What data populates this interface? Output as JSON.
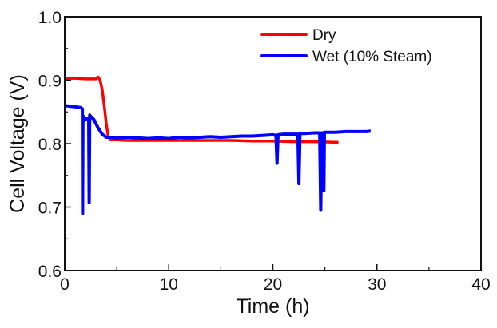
{
  "chart_data": {
    "type": "line",
    "title": "",
    "xlabel": "Time (h)",
    "ylabel": "Cell Voltage (V)",
    "xlim": [
      0,
      40
    ],
    "ylim": [
      0.6,
      1.0
    ],
    "x_ticks": [
      0,
      10,
      20,
      30,
      40
    ],
    "x_tick_labels": [
      "0",
      "10",
      "20",
      "30",
      "40"
    ],
    "y_ticks": [
      0.6,
      0.7,
      0.8,
      0.9,
      1.0
    ],
    "y_tick_labels": [
      "0.6",
      "0.7",
      "0.8",
      "0.9",
      "1.0"
    ],
    "x_minor_step": 5,
    "y_minor_step": 0.05,
    "grid": false,
    "legend_position": "top-right",
    "series": [
      {
        "name": "Dry",
        "color": "#ff0000",
        "x": [
          0,
          1,
          2,
          3,
          3.2,
          3.4,
          3.6,
          3.8,
          4.0,
          4.2,
          4.4,
          4.6,
          5,
          6,
          8,
          10,
          12,
          14,
          16,
          18,
          20,
          22,
          24,
          26.3
        ],
        "y": [
          0.903,
          0.903,
          0.902,
          0.902,
          0.905,
          0.9,
          0.885,
          0.86,
          0.83,
          0.81,
          0.806,
          0.806,
          0.806,
          0.805,
          0.805,
          0.805,
          0.805,
          0.805,
          0.805,
          0.804,
          0.804,
          0.803,
          0.803,
          0.802
        ]
      },
      {
        "name": "Wet (10% Steam)",
        "color": "#0000ff",
        "x": [
          0,
          0.5,
          1.0,
          1.5,
          1.7,
          1.72,
          1.75,
          1.78,
          1.8,
          2.0,
          2.3,
          2.35,
          2.4,
          2.45,
          2.5,
          2.8,
          3.2,
          3.6,
          4.0,
          4.5,
          5,
          6,
          7,
          8,
          9,
          10,
          11,
          12,
          13,
          14,
          15,
          16,
          17,
          18,
          19,
          20,
          20.3,
          20.4,
          20.5,
          21,
          22,
          22.4,
          22.5,
          22.6,
          23,
          24,
          24.5,
          24.6,
          24.7,
          24.85,
          24.9,
          24.95,
          25.5,
          26,
          27,
          28,
          29,
          29.4
        ],
        "y": [
          0.86,
          0.859,
          0.858,
          0.857,
          0.855,
          0.69,
          0.84,
          0.835,
          0.843,
          0.838,
          0.84,
          0.707,
          0.845,
          0.84,
          0.843,
          0.838,
          0.825,
          0.815,
          0.81,
          0.81,
          0.809,
          0.81,
          0.809,
          0.808,
          0.809,
          0.808,
          0.81,
          0.809,
          0.81,
          0.811,
          0.81,
          0.811,
          0.812,
          0.812,
          0.813,
          0.814,
          0.813,
          0.769,
          0.814,
          0.815,
          0.815,
          0.815,
          0.737,
          0.816,
          0.816,
          0.817,
          0.817,
          0.695,
          0.817,
          0.817,
          0.726,
          0.818,
          0.818,
          0.818,
          0.819,
          0.819,
          0.819,
          0.82
        ]
      }
    ]
  }
}
